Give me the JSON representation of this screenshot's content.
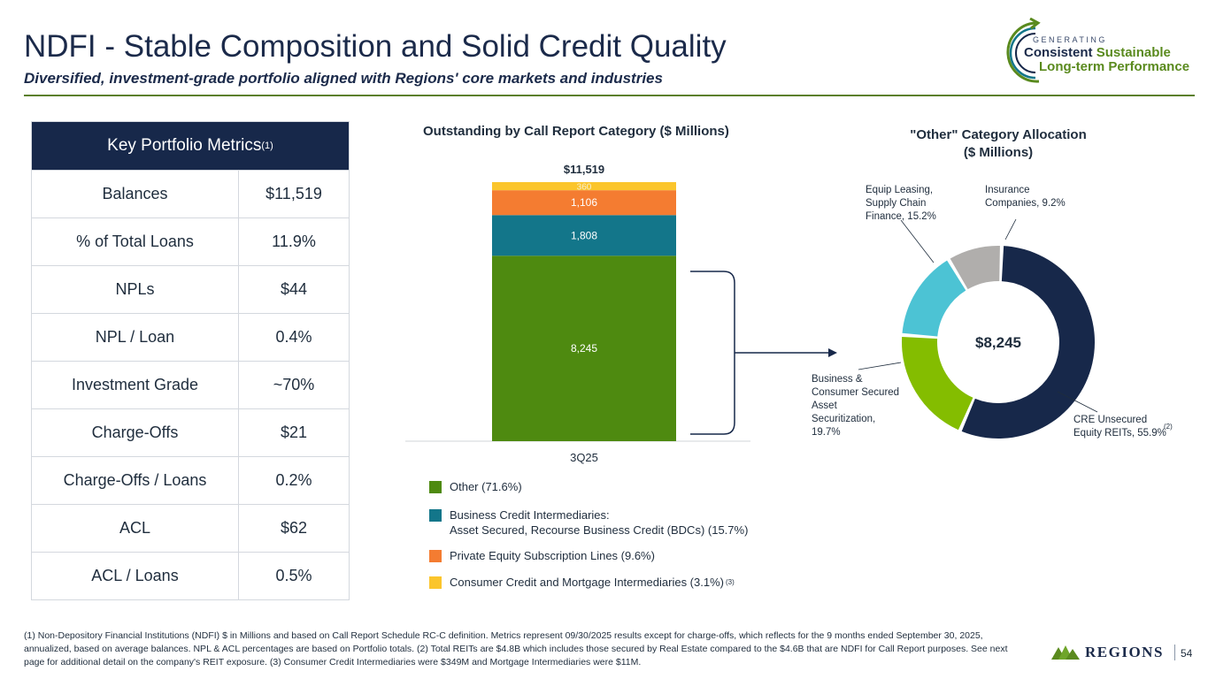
{
  "header": {
    "title": "NDFI - Stable Composition and Solid Credit Quality",
    "subtitle": "Diversified, investment-grade portfolio aligned with Regions' core markets and industries"
  },
  "logo": {
    "generating": "GENERATING",
    "line1_a": "Consistent",
    "line1_b": "Sustainable",
    "line2": "Long-term Performance"
  },
  "metrics": {
    "title": "Key Portfolio Metrics",
    "title_sup": "(1)",
    "rows": [
      {
        "label": "Balances",
        "value": "$11,519"
      },
      {
        "label": "% of Total Loans",
        "value": "11.9%"
      },
      {
        "label": "NPLs",
        "value": "$44"
      },
      {
        "label": "NPL / Loan",
        "value": "0.4%"
      },
      {
        "label": "Investment Grade",
        "value": "~70%"
      },
      {
        "label": "Charge-Offs",
        "value": "$21"
      },
      {
        "label": "Charge-Offs / Loans",
        "value": "0.2%"
      },
      {
        "label": "ACL",
        "value": "$62"
      },
      {
        "label": "ACL / Loans",
        "value": "0.5%"
      }
    ]
  },
  "colors": {
    "navy": "#17284a",
    "green_dark": "#4e8a10",
    "teal": "#13768a",
    "orange": "#f47c31",
    "yellow": "#fbc52c",
    "lime": "#84bd00",
    "cyan": "#4cc3d4",
    "gray": "#b0aeac"
  },
  "chart_data": [
    {
      "type": "bar",
      "stacked": true,
      "title": "Outstanding by Call Report Category ($ Millions)",
      "categories": [
        "3Q25"
      ],
      "total_label": "$11,519",
      "series": [
        {
          "name": "Other (71.6%)",
          "values": [
            8245
          ],
          "label": "8,245",
          "color": "#4e8a10"
        },
        {
          "name": "Business Credit Intermediaries: Asset Secured, Recourse Business Credit (BDCs) (15.7%)",
          "values": [
            1808
          ],
          "label": "1,808",
          "color": "#13768a"
        },
        {
          "name": "Private Equity Subscription Lines (9.6%)",
          "values": [
            1106
          ],
          "label": "1,106",
          "color": "#f47c31"
        },
        {
          "name": "Consumer Credit and Mortgage Intermediaries (3.1%)",
          "values": [
            360
          ],
          "label": "360",
          "color": "#fbc52c"
        }
      ],
      "legend": [
        {
          "text": "Other (71.6%)",
          "color": "#4e8a10"
        },
        {
          "text_line1": "Business Credit Intermediaries:",
          "text_line2": "Asset Secured, Recourse Business Credit (BDCs) (15.7%)",
          "color": "#13768a"
        },
        {
          "text": "Private Equity Subscription Lines (9.6%)",
          "color": "#f47c31"
        },
        {
          "text": "Consumer Credit and Mortgage Intermediaries (3.1%)",
          "sup": "(3)",
          "color": "#fbc52c"
        }
      ]
    },
    {
      "type": "pie",
      "donut": true,
      "title_line1": "\"Other\" Category Allocation",
      "title_line2": "($ Millions)",
      "center_label": "$8,245",
      "slices": [
        {
          "name": "CRE Unsecured Equity REITs",
          "percent": 55.9,
          "color": "#17284a",
          "label_line1": "CRE Unsecured",
          "label_line2": "Equity REITs, 55.9%",
          "sup": "(2)"
        },
        {
          "name": "Business & Consumer Secured Asset Securitization",
          "percent": 19.7,
          "color": "#84bd00",
          "label_lines": [
            "Business &",
            "Consumer Secured",
            "Asset",
            "Securitization,",
            "19.7%"
          ]
        },
        {
          "name": "Equip Leasing, Supply Chain Finance",
          "percent": 15.2,
          "color": "#4cc3d4",
          "label_lines": [
            "Equip Leasing,",
            "Supply Chain",
            "Finance, 15.2%"
          ]
        },
        {
          "name": "Insurance Companies",
          "percent": 9.2,
          "color": "#b0aeac",
          "label_lines": [
            "Insurance",
            "Companies, 9.2%"
          ]
        }
      ]
    }
  ],
  "footnote": "(1) Non-Depository Financial Institutions (NDFI) $ in Millions and based on Call Report Schedule RC-C definition. Metrics represent 09/30/2025 results except for charge-offs, which reflects for the 9 months ended September 30, 2025, annualized, based on average balances. NPL & ACL percentages are based on Portfolio totals. (2) Total REITs are $4.8B which includes those secured by Real Estate compared to the $4.6B that are NDFI for Call Report purposes. See next page for additional detail on the company's REIT exposure. (3) Consumer Credit Intermediaries were $349M and Mortgage Intermediaries were $11M.",
  "footer": {
    "brand": "REGIONS",
    "page_number": "54"
  }
}
